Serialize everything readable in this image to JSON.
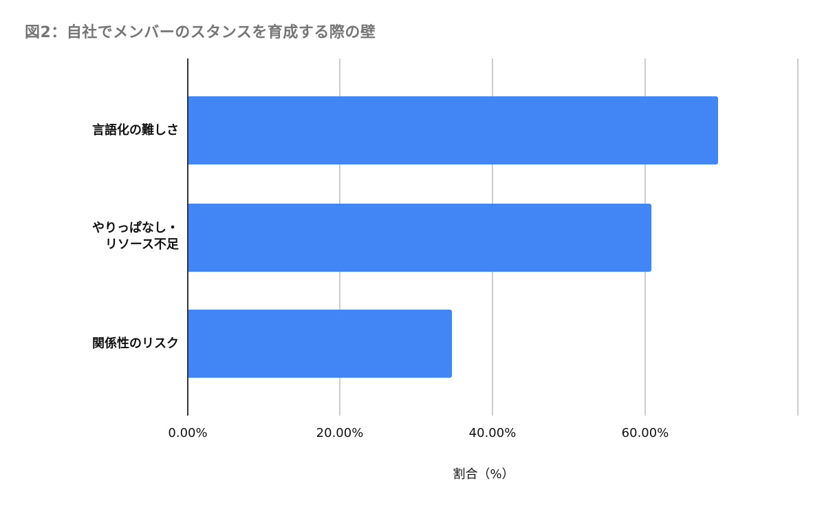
{
  "chart_data": {
    "type": "bar",
    "orientation": "horizontal",
    "title": "図2：自社でメンバーのスタンスを育成する際の壁",
    "categories": [
      "言語化の難しさ",
      "やりっぱなし・\nリソース不足",
      "関係性のリスク"
    ],
    "values": [
      69.6,
      60.9,
      34.7
    ],
    "series": [
      {
        "name": "割合（%）",
        "values": [
          69.6,
          60.9,
          34.7
        ],
        "color": "#4285F4"
      }
    ],
    "xlabel": "割合（%）",
    "ylabel": "",
    "xlim": [
      0,
      80
    ],
    "xticks": [
      0,
      20,
      40,
      60,
      80
    ],
    "xtick_labels": [
      "0.00%",
      "20.00%",
      "40.00%",
      "60.00%",
      ""
    ],
    "grid": true,
    "legend": "none"
  },
  "colors": {
    "bar": "#4285F4",
    "title": "#757575",
    "gridline": "#cccccc",
    "axis": "#333333"
  }
}
